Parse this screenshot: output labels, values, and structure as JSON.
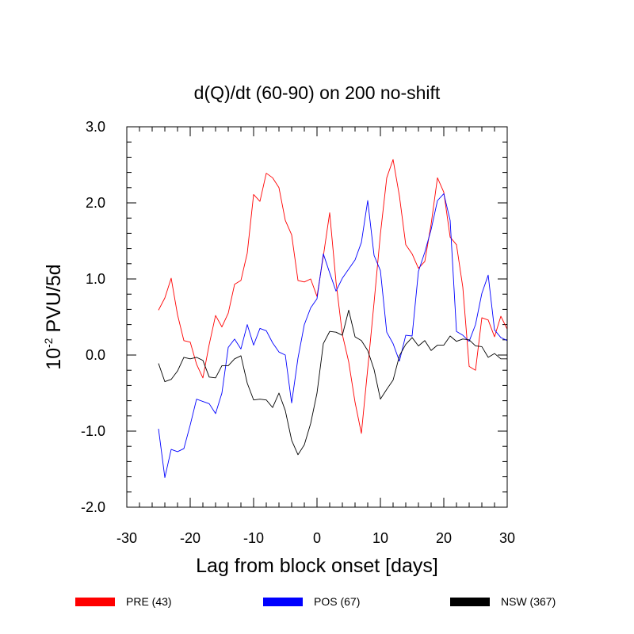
{
  "chart_data": {
    "type": "line",
    "title": "d(Q)/dt (60-90) on 200 no-shift",
    "xlabel": "Lag from block onset [days]",
    "ylabel_base": "10",
    "ylabel_exp": "-2",
    "ylabel_unit": " PVU/5d",
    "xlim": [
      -30,
      30
    ],
    "ylim": [
      -2.0,
      3.0
    ],
    "xticks": [
      -30,
      -20,
      -10,
      0,
      10,
      20,
      30
    ],
    "xtick_labels": [
      "-30",
      "-20",
      "-10",
      "0",
      "10",
      "20",
      "30"
    ],
    "yticks": [
      -2.0,
      -1.0,
      0.0,
      1.0,
      2.0,
      3.0
    ],
    "ytick_labels": [
      "-2.0",
      "-1.0",
      "0.0",
      "1.0",
      "2.0",
      "3.0"
    ],
    "legend_position": "bottom",
    "x": [
      -25,
      -24,
      -23,
      -22,
      -21,
      -20,
      -19,
      -18,
      -17,
      -16,
      -15,
      -14,
      -13,
      -12,
      -11,
      -10,
      -9,
      -8,
      -7,
      -6,
      -5,
      -4,
      -3,
      -2,
      -1,
      0,
      1,
      2,
      3,
      4,
      5,
      6,
      7,
      8,
      9,
      10,
      11,
      12,
      13,
      14,
      15,
      16,
      17,
      18,
      19,
      20,
      21,
      22,
      23,
      24,
      25,
      26,
      27,
      28,
      29,
      30
    ],
    "series": [
      {
        "name": "PRE (43)",
        "color": "#ff0000",
        "values": [
          0.59,
          0.75,
          1.01,
          0.53,
          0.19,
          0.17,
          -0.12,
          -0.3,
          0.14,
          0.52,
          0.37,
          0.55,
          0.93,
          0.98,
          1.34,
          2.11,
          2.02,
          2.39,
          2.33,
          2.2,
          1.77,
          1.58,
          0.98,
          0.96,
          1.0,
          0.77,
          1.3,
          1.87,
          0.96,
          0.27,
          -0.09,
          -0.62,
          -1.03,
          -0.18,
          0.69,
          1.59,
          2.33,
          2.57,
          2.09,
          1.45,
          1.33,
          1.14,
          1.23,
          1.72,
          2.33,
          2.14,
          1.55,
          1.45,
          0.89,
          -0.15,
          -0.2,
          0.49,
          0.46,
          0.24,
          0.51,
          0.34
        ]
      },
      {
        "name": "POS (67)",
        "color": "#0000ff",
        "values": [
          -0.97,
          -1.61,
          -1.24,
          -1.27,
          -1.23,
          -0.92,
          -0.58,
          -0.61,
          -0.64,
          -0.77,
          -0.5,
          0.1,
          0.21,
          0.08,
          0.4,
          0.13,
          0.35,
          0.32,
          0.16,
          0.04,
          0.0,
          -0.63,
          -0.04,
          0.4,
          0.62,
          0.74,
          1.33,
          1.08,
          0.84,
          1.01,
          1.13,
          1.25,
          1.48,
          2.03,
          1.31,
          1.11,
          0.3,
          0.15,
          -0.08,
          0.26,
          0.25,
          1.1,
          1.35,
          1.65,
          2.03,
          2.12,
          1.77,
          0.31,
          0.26,
          0.18,
          0.4,
          0.81,
          1.05,
          0.33,
          0.23,
          0.19
        ]
      },
      {
        "name": "NSW (367)",
        "color": "#000000",
        "values": [
          -0.11,
          -0.35,
          -0.32,
          -0.21,
          -0.03,
          -0.05,
          -0.03,
          -0.07,
          -0.29,
          -0.3,
          -0.14,
          -0.14,
          -0.05,
          -0.01,
          -0.37,
          -0.59,
          -0.58,
          -0.59,
          -0.69,
          -0.5,
          -0.73,
          -1.12,
          -1.31,
          -1.18,
          -0.9,
          -0.5,
          0.15,
          0.31,
          0.3,
          0.26,
          0.59,
          0.24,
          0.19,
          0.06,
          -0.19,
          -0.58,
          -0.45,
          -0.33,
          -0.01,
          0.14,
          0.23,
          0.12,
          0.19,
          0.06,
          0.13,
          0.13,
          0.25,
          0.18,
          0.21,
          0.2,
          0.12,
          0.11,
          -0.03,
          0.02,
          -0.05,
          -0.05
        ]
      }
    ]
  }
}
